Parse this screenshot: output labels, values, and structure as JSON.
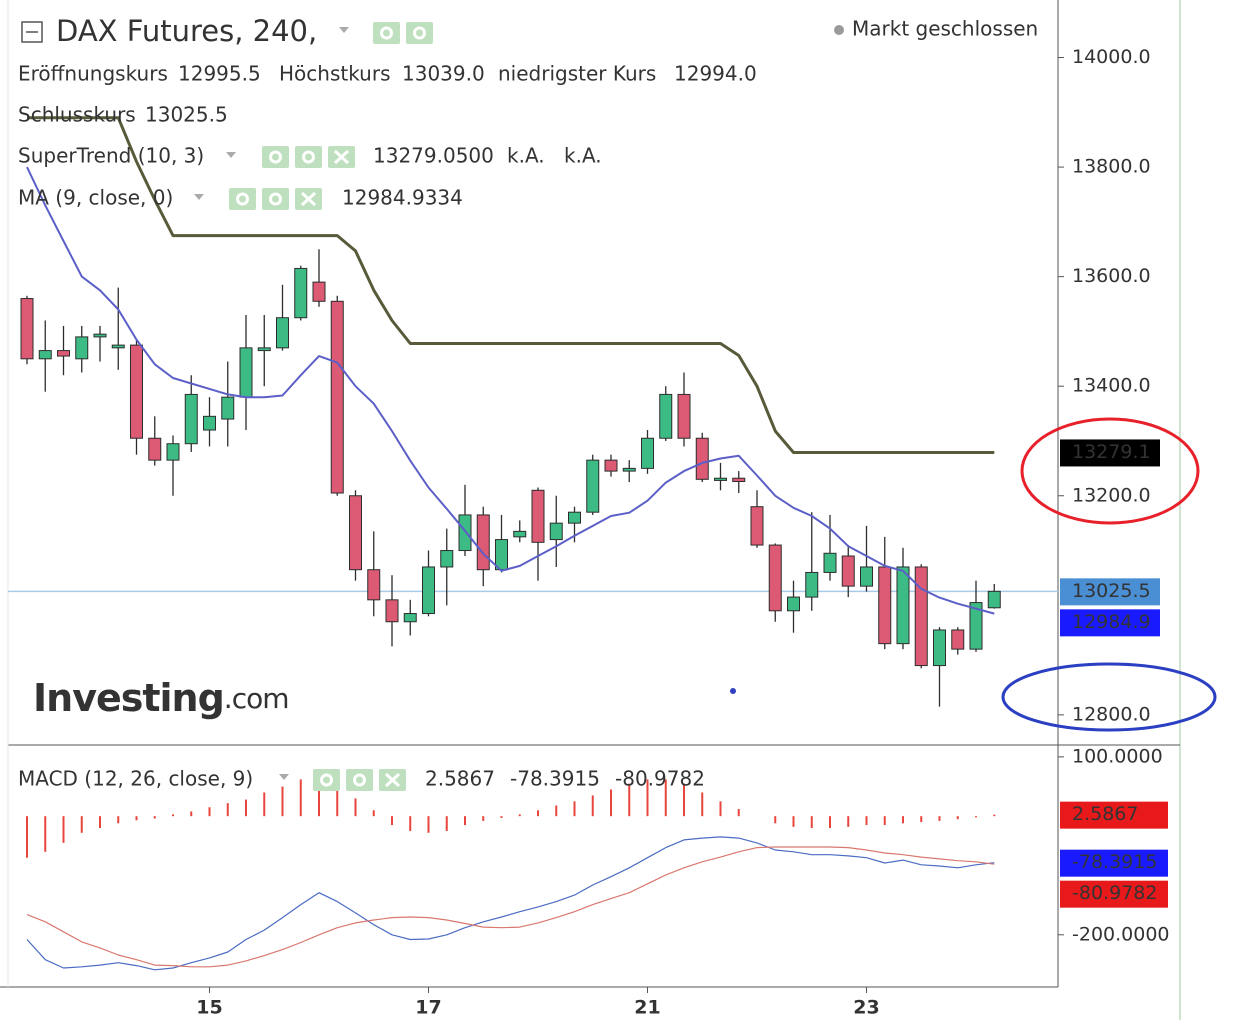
{
  "chart_data": [
    {
      "type": "candlestick",
      "title": "DAX Futures, 240,",
      "status": "Markt geschlossen",
      "categories": [
        null,
        null,
        null,
        null,
        null,
        null,
        null,
        null,
        null,
        null,
        "15",
        null,
        null,
        null,
        null,
        null,
        null,
        null,
        null,
        null,
        null,
        null,
        "17",
        null,
        null,
        null,
        null,
        null,
        null,
        null,
        null,
        null,
        null,
        null,
        "21",
        null,
        null,
        null,
        null,
        null,
        null,
        null,
        null,
        null,
        null,
        null,
        "23",
        null,
        null,
        null,
        null,
        null,
        null,
        null
      ],
      "ohlc_legend": [
        {
          "name": "Eröffnungskurs",
          "label": "12995.5"
        },
        {
          "name": "Höchstkurs",
          "label": "13039.0"
        },
        {
          "name": "niedrigster Kurs",
          "label": "12994.0"
        },
        {
          "name": "Schlusskurs",
          "label": "13025.5"
        }
      ],
      "up_color": "#3dbb84",
      "down_color": "#dc5a74",
      "open": [
        13560,
        13450,
        13465,
        13450,
        13490,
        13470,
        13475,
        13305,
        13265,
        13295,
        13320,
        13340,
        13380,
        13465,
        13470,
        13525,
        13590,
        13555,
        13200,
        13065,
        13010,
        12970,
        12985,
        13070,
        13100,
        13165,
        13065,
        13125,
        13210,
        13120,
        13150,
        13170,
        13265,
        13245,
        13250,
        13305,
        13385,
        13305,
        13228,
        13232,
        13180,
        13110,
        12990,
        13015,
        13060,
        13090,
        13035,
        13070,
        12930,
        13070,
        12890,
        12955,
        12920,
        12995.5
      ],
      "high": [
        13565,
        13520,
        13510,
        13510,
        13510,
        13580,
        13485,
        13345,
        13310,
        13420,
        13380,
        13445,
        13530,
        13530,
        13585,
        13620,
        13650,
        13565,
        13210,
        13135,
        13055,
        13010,
        13100,
        13140,
        13220,
        13180,
        13165,
        13155,
        13215,
        13200,
        13180,
        13275,
        13275,
        13265,
        13320,
        13400,
        13425,
        13315,
        13260,
        13245,
        13210,
        13113,
        13045,
        13170,
        13165,
        13110,
        13145,
        13125,
        13105,
        13075,
        12960,
        12960,
        13045,
        13039
      ],
      "low": [
        13440,
        13390,
        13420,
        13425,
        13445,
        13430,
        13275,
        13255,
        13200,
        13280,
        13290,
        13290,
        13320,
        13400,
        13465,
        13520,
        13545,
        13200,
        13045,
        12980,
        12925,
        12945,
        12980,
        13000,
        13090,
        13035,
        13060,
        13115,
        13045,
        13070,
        13115,
        13165,
        13235,
        13225,
        13240,
        13300,
        13290,
        13225,
        13210,
        13205,
        13105,
        12970,
        12950,
        12990,
        13045,
        13015,
        13025,
        12920,
        12920,
        12885,
        12815,
        12910,
        12915,
        12994
      ],
      "close": [
        13450,
        13465,
        13455,
        13490,
        13495,
        13475,
        13305,
        13265,
        13295,
        13385,
        13345,
        13380,
        13470,
        13470,
        13525,
        13615,
        13555,
        13205,
        13065,
        13010,
        12970,
        12985,
        13070,
        13100,
        13165,
        13065,
        13120,
        13135,
        13115,
        13150,
        13170,
        13265,
        13245,
        13250,
        13305,
        13385,
        13305,
        13230,
        13232,
        13226,
        13110,
        12990,
        13015,
        13060,
        13095,
        13035,
        13070,
        12930,
        13070,
        12890,
        12955,
        12920,
        13005,
        13025.5
      ],
      "last_price": {
        "color": "#4a8fd4",
        "line_color": "#a9cbe9"
      },
      "overlays": [
        {
          "name": "SuperTrend (10, 3)",
          "color": "#585a3a",
          "legend_color": "#111111",
          "values": [
            13890,
            13890,
            13890,
            13890,
            13890,
            13890,
            13810,
            13740,
            13675,
            13675,
            13675,
            13675,
            13675,
            13675,
            13675,
            13675,
            13675,
            13675,
            13647,
            13575,
            13520,
            13478,
            13478,
            13478,
            13478,
            13478,
            13478,
            13478,
            13478,
            13478,
            13478,
            13478,
            13478,
            13478,
            13478,
            13478,
            13478,
            13478,
            13478,
            13456,
            13400,
            13318,
            13279.05,
            13279.05,
            13279.05,
            13279.05,
            13279.05,
            13279.05,
            13279.05,
            13279.05,
            13279.05,
            13279.05,
            13279.05,
            13279.05
          ],
          "legend_values": [
            "13279.0500",
            "k.A.",
            "k.A."
          ],
          "badge": "13279.1",
          "badge_color": "#000000"
        },
        {
          "name": "MA (9, close, 0)",
          "color": "#5b5fc7",
          "legend_color": "#1c1cb0",
          "values": [
            13800,
            13730,
            13665,
            13600,
            13575,
            13540,
            13485,
            13440,
            13415,
            13405,
            13395,
            13385,
            13380,
            13380,
            13383,
            13420,
            13455,
            13443,
            13400,
            13368,
            13318,
            13264,
            13215,
            13176,
            13136,
            13094,
            13063,
            13072,
            13090,
            13108,
            13127,
            13145,
            13163,
            13169,
            13191,
            13224,
            13245,
            13260,
            13268,
            13273,
            13237,
            13200,
            13178,
            13163,
            13140,
            13108,
            13090,
            13072,
            13063,
            13030,
            13014,
            13003,
            12994,
            12984.9334
          ],
          "badge": "12984.9",
          "badge_color": "#1a1aff"
        }
      ],
      "ylim": [
        12745,
        14105
      ],
      "yticks": [
        {
          "value": 12800,
          "label": "12800.0"
        },
        {
          "value": 13200,
          "label": "13200.0"
        },
        {
          "value": 13400,
          "label": "13400.0"
        },
        {
          "value": 13600,
          "label": "13600.0"
        },
        {
          "value": 13800,
          "label": "13800.0"
        },
        {
          "value": 14000,
          "label": "14000.0"
        }
      ],
      "logo": {
        "brand": "Investing",
        "suffix": ".com"
      }
    },
    {
      "type": "macd",
      "title": "MACD (12, 26, close, 9)",
      "histogram": {
        "color": "#e8453c",
        "legend_color": "#d32f2f",
        "badge_color": "#e8191b",
        "values": [
          -70,
          -60,
          -45,
          -28,
          -20,
          -12,
          -7,
          -4,
          3,
          8,
          15,
          22,
          28,
          40,
          50,
          62,
          62,
          50,
          30,
          10,
          -15,
          -25,
          -28,
          -25,
          -15,
          -8,
          -3,
          3,
          10,
          18,
          25,
          35,
          45,
          55,
          62,
          62,
          55,
          40,
          25,
          12,
          0,
          -12,
          -18,
          -20,
          -20,
          -18,
          -15,
          -15,
          -12,
          -10,
          -8,
          -5,
          -2,
          2.5867
        ]
      },
      "lines": [
        {
          "color": "#4b6cc4",
          "legend_color": "#1c1cb0",
          "badge_color": "#1a1aff",
          "values": [
            -208,
            -242,
            -256,
            -254,
            -251,
            -247,
            -252,
            -259,
            -256,
            -247,
            -239,
            -229,
            -208,
            -192,
            -171,
            -149,
            -129,
            -144,
            -163,
            -183,
            -200,
            -208,
            -207,
            -200,
            -188,
            -178,
            -170,
            -161,
            -153,
            -144,
            -133,
            -116,
            -102,
            -87,
            -70,
            -53,
            -40,
            -37,
            -35,
            -37,
            -45,
            -57,
            -60,
            -65,
            -65,
            -67,
            -70,
            -79,
            -74,
            -82,
            -84,
            -87,
            -82,
            -78.3915
          ]
        },
        {
          "color": "#d9786f",
          "legend_color": "#d32f2f",
          "badge_color": "#e8191b",
          "values": [
            -166,
            -178,
            -195,
            -212,
            -222,
            -234,
            -242,
            -251,
            -252,
            -254,
            -254,
            -251,
            -244,
            -235,
            -225,
            -213,
            -200,
            -188,
            -180,
            -175,
            -171,
            -170,
            -171,
            -175,
            -181,
            -187,
            -188,
            -187,
            -180,
            -171,
            -161,
            -149,
            -139,
            -129,
            -114,
            -99,
            -87,
            -77,
            -69,
            -60,
            -53,
            -52,
            -52,
            -52,
            -52,
            -53,
            -57,
            -62,
            -65,
            -69,
            -72,
            -75,
            -77,
            -80.9782
          ]
        }
      ],
      "ylim": [
        -288,
        120
      ],
      "yticks": [
        {
          "value": 100,
          "label": "100.0000"
        },
        {
          "value": -200,
          "label": "-200.0000"
        }
      ]
    }
  ]
}
